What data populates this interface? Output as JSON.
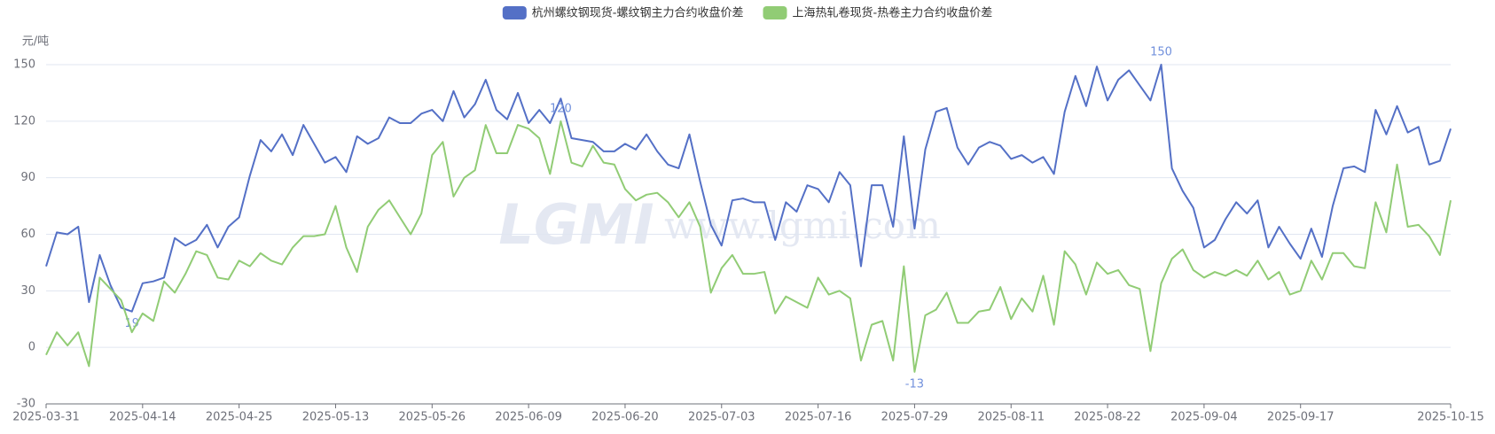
{
  "chart_data": {
    "type": "line",
    "y_label": "元/吨",
    "watermark": [
      "LGMI",
      "www.lgmi.com"
    ],
    "categories": [
      "2025-03-31",
      null,
      null,
      null,
      null,
      null,
      null,
      null,
      null,
      "2025-04-14",
      null,
      null,
      null,
      null,
      null,
      null,
      null,
      null,
      "2025-04-25",
      null,
      null,
      null,
      null,
      null,
      null,
      null,
      null,
      "2025-05-13",
      null,
      null,
      null,
      null,
      null,
      null,
      null,
      null,
      "2025-05-26",
      null,
      null,
      null,
      null,
      null,
      null,
      null,
      null,
      "2025-06-09",
      null,
      null,
      null,
      null,
      null,
      null,
      null,
      null,
      "2025-06-20",
      null,
      null,
      null,
      null,
      null,
      null,
      null,
      null,
      "2025-07-03",
      null,
      null,
      null,
      null,
      null,
      null,
      null,
      null,
      "2025-07-16",
      null,
      null,
      null,
      null,
      null,
      null,
      null,
      null,
      "2025-07-29",
      null,
      null,
      null,
      null,
      null,
      null,
      null,
      null,
      "2025-08-11",
      null,
      null,
      null,
      null,
      null,
      null,
      null,
      null,
      "2025-08-22",
      null,
      null,
      null,
      null,
      null,
      null,
      null,
      null,
      "2025-09-04",
      null,
      null,
      null,
      null,
      null,
      null,
      null,
      null,
      "2025-09-17",
      null,
      null,
      null,
      null,
      null,
      null,
      null,
      null,
      null,
      null,
      null,
      null,
      null,
      "2025-10-15"
    ],
    "series": [
      {
        "name": "杭州螺纹钢现货-螺纹钢主力合约收盘价差",
        "color": "#5470c6",
        "values": [
          43,
          61,
          60,
          64,
          24,
          49,
          33,
          21,
          19,
          34,
          35,
          37,
          58,
          54,
          57,
          65,
          53,
          64,
          69,
          91,
          110,
          104,
          113,
          102,
          118,
          108,
          98,
          101,
          93,
          112,
          108,
          111,
          122,
          119,
          119,
          124,
          126,
          120,
          136,
          122,
          129,
          142,
          126,
          121,
          135,
          119,
          126,
          119,
          132,
          111,
          110,
          109,
          104,
          104,
          108,
          105,
          113,
          104,
          97,
          95,
          113,
          88,
          65,
          54,
          78,
          79,
          77,
          77,
          57,
          77,
          72,
          86,
          84,
          77,
          93,
          86,
          43,
          86,
          86,
          64,
          112,
          63,
          105,
          125,
          127,
          106,
          97,
          106,
          109,
          107,
          100,
          102,
          98,
          101,
          92,
          125,
          144,
          128,
          149,
          131,
          142,
          147,
          139,
          131,
          150,
          95,
          83,
          74,
          53,
          57,
          68,
          77,
          71,
          78,
          53,
          64,
          55,
          47,
          63,
          48,
          75,
          95,
          96,
          93,
          126,
          113,
          128,
          114,
          117,
          97,
          99,
          116
        ]
      },
      {
        "name": "上海热轧卷现货-热卷主力合约收盘价差",
        "color": "#91cc75",
        "values": [
          -4,
          8,
          1,
          8,
          -10,
          37,
          31,
          25,
          8,
          18,
          14,
          35,
          29,
          39,
          51,
          49,
          37,
          36,
          46,
          43,
          50,
          46,
          44,
          53,
          59,
          59,
          60,
          75,
          53,
          40,
          64,
          73,
          78,
          69,
          60,
          71,
          102,
          109,
          80,
          90,
          94,
          118,
          103,
          103,
          118,
          116,
          111,
          92,
          120,
          98,
          96,
          107,
          98,
          97,
          84,
          78,
          81,
          82,
          77,
          69,
          77,
          64,
          29,
          42,
          49,
          39,
          39,
          40,
          18,
          27,
          24,
          21,
          37,
          28,
          30,
          26,
          -7,
          12,
          14,
          -7,
          43,
          -13,
          17,
          20,
          29,
          13,
          13,
          19,
          20,
          32,
          15,
          26,
          19,
          38,
          12,
          51,
          44,
          28,
          45,
          39,
          41,
          33,
          31,
          -2,
          34,
          47,
          52,
          41,
          37,
          40,
          38,
          41,
          38,
          46,
          36,
          40,
          28,
          30,
          46,
          36,
          50,
          50,
          43,
          42,
          77,
          61,
          97,
          64,
          65,
          59,
          49,
          78
        ]
      }
    ],
    "ylim": [
      -30,
      150
    ],
    "yticks": [
      -30,
      0,
      30,
      60,
      90,
      120,
      150
    ],
    "grid": true,
    "legend": "top"
  }
}
